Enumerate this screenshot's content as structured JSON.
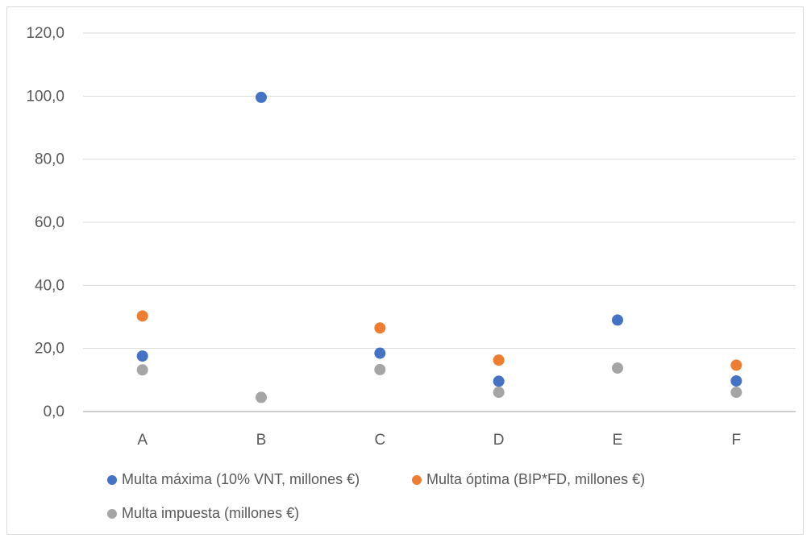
{
  "chart_data": {
    "type": "scatter",
    "categories": [
      "A",
      "B",
      "C",
      "D",
      "E",
      "F"
    ],
    "ylim": [
      0,
      120
    ],
    "yticks": [
      "0,0",
      "20,0",
      "40,0",
      "60,0",
      "80,0",
      "100,0",
      "120,0"
    ],
    "grid": true,
    "legend_position": "bottom",
    "series": [
      {
        "name": "Multa máxima (10% VNT, millones €)",
        "color": "#4472c4",
        "values": [
          17.6,
          99.6,
          18.5,
          9.6,
          29.0,
          9.7
        ]
      },
      {
        "name": "Multa óptima (BIP*FD, millones €)",
        "color": "#ed7d31",
        "values": [
          30.3,
          null,
          26.5,
          16.3,
          null,
          14.7
        ]
      },
      {
        "name": "Multa impuesta (millones €)",
        "color": "#a5a5a5",
        "values": [
          13.2,
          4.5,
          13.3,
          6.1,
          13.8,
          6.1
        ]
      }
    ]
  }
}
